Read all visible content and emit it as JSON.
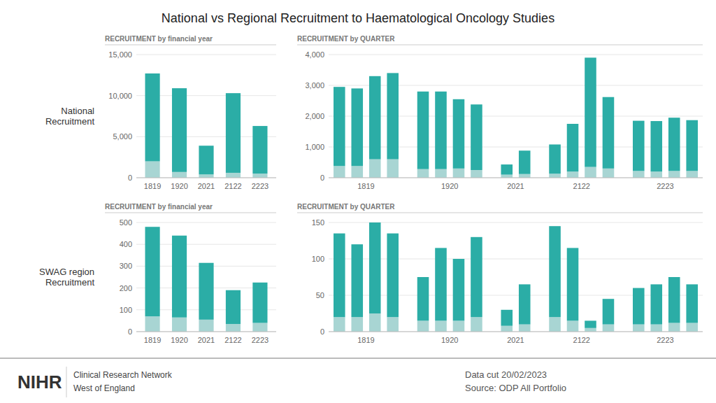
{
  "title": "National vs Regional Recruitment to Haematological Oncology Studies",
  "annotations": [
    "NIHR",
    "Clinical Research Network",
    "West of England",
    "Data cut 20/02/2023",
    "Source: ODP All Portfolio"
  ],
  "chart_data": [
    {
      "type": "bar",
      "title": "RECRUITMENT by financial year",
      "ylabel": "National\nRecruitment",
      "stacked": true,
      "grid": true,
      "categories": [
        "1819",
        "1920",
        "2021",
        "2122",
        "2223"
      ],
      "series": [
        {
          "color": "#A8D5D3",
          "values": [
            2000,
            700,
            400,
            600,
            500
          ]
        },
        {
          "color": "#2BADA6",
          "values": [
            10700,
            10200,
            3500,
            9700,
            5800
          ]
        }
      ],
      "ylim": [
        0,
        15000
      ],
      "yticks": [
        0,
        {
          "value": 5000,
          "label": "5,000"
        },
        {
          "value": 10000,
          "label": "10,000"
        },
        {
          "value": 15000,
          "label": "15,000"
        }
      ]
    },
    {
      "type": "bar",
      "title": "RECRUITMENT by QUARTER",
      "stacked": true,
      "grid": true,
      "categories": [
        "1819",
        null,
        null,
        null,
        "1920",
        null,
        null,
        null,
        "2021",
        null,
        "2122",
        null,
        null,
        null,
        "2223",
        null,
        null,
        null
      ],
      "series": [
        {
          "color": "#A8D5D3",
          "values": [
            380,
            380,
            600,
            600,
            280,
            280,
            300,
            250,
            100,
            120,
            130,
            200,
            350,
            300,
            220,
            200,
            220,
            220
          ]
        },
        {
          "color": "#2BADA6",
          "values": [
            2570,
            2520,
            2700,
            2800,
            2520,
            2520,
            2250,
            2130,
            330,
            760,
            950,
            1550,
            3550,
            2320,
            1630,
            1640,
            1730,
            1650
          ]
        }
      ],
      "ylim": [
        0,
        4000
      ],
      "yticks": [
        0,
        {
          "value": 1000,
          "label": "1,000"
        },
        {
          "value": 2000,
          "label": "2,000"
        },
        {
          "value": 3000,
          "label": "3,000"
        },
        {
          "value": 4000,
          "label": "4,000"
        }
      ]
    },
    {
      "type": "bar",
      "title": "RECRUITMENT by financial year",
      "ylabel": "SWAG region\nRecruitment",
      "stacked": true,
      "grid": true,
      "categories": [
        "1819",
        "1920",
        "2021",
        "2122",
        "2223"
      ],
      "series": [
        {
          "color": "#A8D5D3",
          "values": [
            70,
            65,
            55,
            35,
            40
          ]
        },
        {
          "color": "#2BADA6",
          "values": [
            410,
            375,
            260,
            155,
            185
          ]
        }
      ],
      "ylim": [
        0,
        500
      ],
      "yticks": [
        0,
        100,
        200,
        300,
        400,
        500
      ]
    },
    {
      "type": "bar",
      "title": "RECRUITMENT by QUARTER",
      "stacked": true,
      "grid": true,
      "categories": [
        "1819",
        null,
        null,
        null,
        "1920",
        null,
        null,
        null,
        "2021",
        null,
        "2122",
        null,
        null,
        null,
        "2223",
        null,
        null,
        null
      ],
      "series": [
        {
          "color": "#A8D5D3",
          "values": [
            20,
            20,
            25,
            20,
            15,
            15,
            15,
            20,
            8,
            10,
            20,
            15,
            5,
            10,
            10,
            10,
            12,
            12
          ]
        },
        {
          "color": "#2BADA6",
          "values": [
            115,
            100,
            125,
            115,
            60,
            100,
            85,
            110,
            22,
            55,
            125,
            100,
            10,
            35,
            50,
            55,
            63,
            53
          ]
        }
      ],
      "ylim": [
        0,
        150
      ],
      "yticks": [
        0,
        50,
        100,
        150
      ]
    }
  ]
}
